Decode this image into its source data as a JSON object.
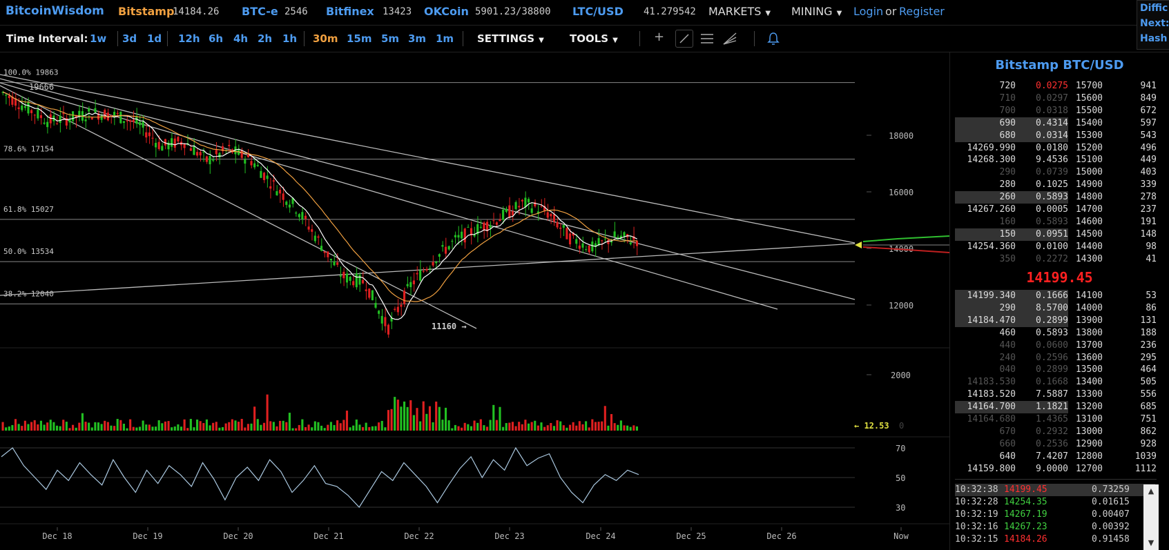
{
  "brand": "BitcoinWisdom",
  "exchanges": [
    {
      "name": "Bitstamp",
      "price": "14184.26",
      "active": true
    },
    {
      "name": "BTC-e",
      "price": "2546",
      "active": false
    },
    {
      "name": "Bitfinex",
      "price": "13423",
      "active": false
    },
    {
      "name": "OKCoin",
      "price": "5901.23/38800",
      "active": false
    },
    {
      "name": "LTC/USD",
      "price": "41.279542",
      "active": false
    }
  ],
  "nav": {
    "markets": "MARKETS",
    "mining": "MINING",
    "login": "Login",
    "or": "or",
    "register": "Register"
  },
  "right_edge": [
    "Diffic",
    "Next:",
    "Hash"
  ],
  "toolbar": {
    "time_interval_label": "Time Interval:",
    "intervals": [
      "1w",
      "3d",
      "1d",
      "12h",
      "6h",
      "4h",
      "2h",
      "1h",
      "30m",
      "15m",
      "5m",
      "3m",
      "1m"
    ],
    "active_interval": "30m",
    "settings": "SETTINGS",
    "tools": "TOOLS",
    "icons": [
      "crosshair-icon",
      "trendline-icon",
      "hlines-icon",
      "fan-icon",
      "bell-icon"
    ]
  },
  "colors": {
    "accent": "#4d9bf0",
    "active": "#f0a040",
    "up": "#22c022",
    "down": "#e02020",
    "price": "#ff2020"
  },
  "chart_data": {
    "type": "candlestick",
    "exchange_pair": "Bitstamp BTC/USD",
    "x_ticks": [
      "Dec 18",
      "Dec 19",
      "Dec 20",
      "Dec 21",
      "Dec 22",
      "Dec 23",
      "Dec 24",
      "Dec 25",
      "Dec 26",
      "Now"
    ],
    "price_axis": {
      "ticks": [
        18000,
        16000,
        14000,
        12000
      ],
      "range": [
        11000,
        20000
      ]
    },
    "fib_levels": [
      {
        "label": "100.0% 19863",
        "value": 19863
      },
      {
        "label": "78.6% 17154",
        "value": 17154
      },
      {
        "label": "61.8% 15027",
        "value": 15027
      },
      {
        "label": "50.0% 13534",
        "value": 13534
      },
      {
        "label": "38.2% 12040",
        "value": 12040
      }
    ],
    "annotations": {
      "high": "19666",
      "low": "11160 →",
      "volume_last": "← 12.53",
      "volume_zero": "0"
    },
    "price_path_approx": [
      19500,
      19000,
      18500,
      18600,
      18800,
      18700,
      18400,
      17600,
      17800,
      17100,
      17500,
      17100,
      16200,
      15400,
      14200,
      13000,
      12800,
      11160,
      12700,
      13600,
      14300,
      14700,
      15100,
      15600,
      15300,
      14400,
      14000,
      14400,
      14300
    ],
    "volume_axis": {
      "ticks": [
        2000
      ],
      "range": [
        0,
        2600
      ]
    },
    "rsi": {
      "ticks": [
        70,
        50,
        30
      ],
      "range": [
        20,
        80
      ],
      "values_approx": [
        64,
        70,
        58,
        50,
        42,
        55,
        48,
        60,
        52,
        45,
        62,
        50,
        40,
        55,
        46,
        58,
        52,
        44,
        60,
        49,
        35,
        50,
        57,
        48,
        62,
        54,
        40,
        48,
        58,
        46,
        44,
        38,
        30,
        42,
        54,
        48,
        60,
        52,
        44,
        33,
        45,
        56,
        64,
        50,
        62,
        55,
        70,
        58,
        63,
        66,
        50,
        40,
        33,
        45,
        52,
        48,
        55,
        52
      ]
    }
  },
  "orderbook": {
    "title": "Bitstamp BTC/USD",
    "asks": [
      {
        "sum": "720",
        "vol": "0.0275",
        "price": "15700",
        "cum": "941",
        "hl": false,
        "bright": true,
        "red": true
      },
      {
        "sum": "710",
        "vol": "0.0297",
        "price": "15600",
        "cum": "849",
        "hl": false,
        "bright": false
      },
      {
        "sum": "700",
        "vol": "0.0318",
        "price": "15500",
        "cum": "672",
        "hl": false,
        "bright": false
      },
      {
        "sum": "690",
        "vol": "0.4314",
        "price": "15400",
        "cum": "597",
        "hl": true,
        "bright": true
      },
      {
        "sum": "680",
        "vol": "0.0314",
        "price": "15300",
        "cum": "543",
        "hl": true,
        "bright": true
      },
      {
        "sum": "14269.990",
        "vol": "0.0180",
        "price": "15200",
        "cum": "496",
        "hl": false,
        "bright": true
      },
      {
        "sum": "14268.300",
        "vol": "9.4536",
        "price": "15100",
        "cum": "449",
        "hl": false,
        "bright": true
      },
      {
        "sum": "290",
        "vol": "0.0739",
        "price": "15000",
        "cum": "403",
        "hl": false,
        "bright": false
      },
      {
        "sum": "280",
        "vol": "0.1025",
        "price": "14900",
        "cum": "339",
        "hl": false,
        "bright": true
      },
      {
        "sum": "260",
        "vol": "0.5893",
        "price": "14800",
        "cum": "278",
        "hl": true,
        "bright": true
      },
      {
        "sum": "14267.260",
        "vol": "0.0005",
        "price": "14700",
        "cum": "237",
        "hl": false,
        "bright": true
      },
      {
        "sum": "160",
        "vol": "0.5893",
        "price": "14600",
        "cum": "191",
        "hl": false,
        "bright": false
      },
      {
        "sum": "150",
        "vol": "0.0951",
        "price": "14500",
        "cum": "148",
        "hl": true,
        "bright": true
      },
      {
        "sum": "14254.360",
        "vol": "0.0100",
        "price": "14400",
        "cum": "98",
        "hl": false,
        "bright": true
      },
      {
        "sum": "350",
        "vol": "0.2272",
        "price": "14300",
        "cum": "41",
        "hl": false,
        "bright": false
      }
    ],
    "last_price": "14199.45",
    "bids": [
      {
        "sum": "14199.340",
        "vol": "0.1666",
        "price": "14100",
        "cum": "53",
        "hl": true,
        "bright": true
      },
      {
        "sum": "290",
        "vol": "8.5700",
        "price": "14000",
        "cum": "86",
        "hl": true,
        "bright": true
      },
      {
        "sum": "14184.470",
        "vol": "0.2899",
        "price": "13900",
        "cum": "131",
        "hl": true,
        "bright": true
      },
      {
        "sum": "460",
        "vol": "0.5893",
        "price": "13800",
        "cum": "188",
        "hl": false,
        "bright": true
      },
      {
        "sum": "440",
        "vol": "0.0600",
        "price": "13700",
        "cum": "236",
        "hl": false,
        "bright": false
      },
      {
        "sum": "240",
        "vol": "0.2596",
        "price": "13600",
        "cum": "295",
        "hl": false,
        "bright": false
      },
      {
        "sum": "040",
        "vol": "0.2899",
        "price": "13500",
        "cum": "464",
        "hl": false,
        "bright": false
      },
      {
        "sum": "14183.530",
        "vol": "0.1668",
        "price": "13400",
        "cum": "505",
        "hl": false,
        "bright": false
      },
      {
        "sum": "14183.520",
        "vol": "7.5887",
        "price": "13300",
        "cum": "556",
        "hl": false,
        "bright": true
      },
      {
        "sum": "14164.700",
        "vol": "1.1821",
        "price": "13200",
        "cum": "685",
        "hl": true,
        "bright": true
      },
      {
        "sum": "14164.680",
        "vol": "1.4365",
        "price": "13100",
        "cum": "751",
        "hl": false,
        "bright": false
      },
      {
        "sum": "670",
        "vol": "0.2932",
        "price": "13000",
        "cum": "862",
        "hl": false,
        "bright": false
      },
      {
        "sum": "660",
        "vol": "0.2536",
        "price": "12900",
        "cum": "928",
        "hl": false,
        "bright": false
      },
      {
        "sum": "640",
        "vol": "7.4207",
        "price": "12800",
        "cum": "1039",
        "hl": false,
        "bright": true
      },
      {
        "sum": "14159.800",
        "vol": "9.0000",
        "price": "12700",
        "cum": "1112",
        "hl": false,
        "bright": true
      }
    ]
  },
  "trades": [
    {
      "time": "10:32:38",
      "price": "14199.45",
      "amount": "0.73259",
      "dir": "down",
      "hl": true
    },
    {
      "time": "10:32:28",
      "price": "14254.35",
      "amount": "0.01615",
      "dir": "up",
      "hl": false
    },
    {
      "time": "10:32:19",
      "price": "14267.19",
      "amount": "0.00407",
      "dir": "up",
      "hl": false
    },
    {
      "time": "10:32:16",
      "price": "14267.23",
      "amount": "0.00392",
      "dir": "up",
      "hl": false
    },
    {
      "time": "10:32:15",
      "price": "14184.26",
      "amount": "0.91458",
      "dir": "down",
      "hl": false
    }
  ]
}
